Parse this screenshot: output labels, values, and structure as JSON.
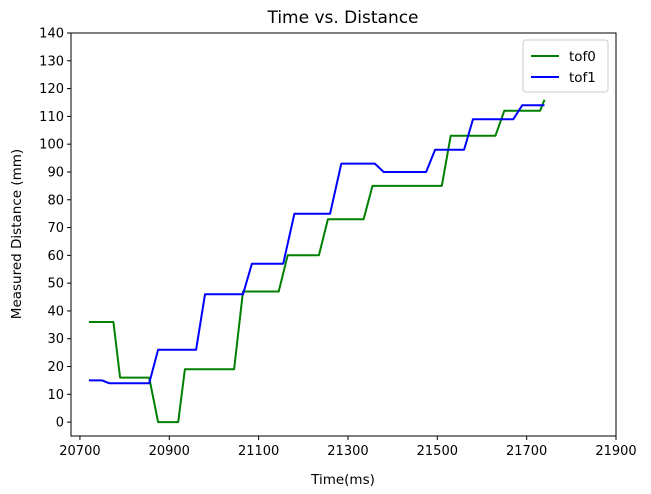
{
  "chart_data": {
    "type": "line",
    "title": "Time vs. Distance",
    "xlabel": "Time(ms)",
    "ylabel": "Measured Distance (mm)",
    "xlim": [
      20680,
      21900
    ],
    "ylim": [
      -5,
      140
    ],
    "xticks": [
      20700,
      20900,
      21100,
      21300,
      21500,
      21700,
      21900
    ],
    "yticks": [
      0,
      10,
      20,
      30,
      40,
      50,
      60,
      70,
      80,
      90,
      100,
      110,
      120,
      130,
      140
    ],
    "grid": false,
    "legend_position": "top-right",
    "series": [
      {
        "name": "tof0",
        "color": "#008000",
        "x": [
          20720,
          20775,
          20790,
          20855,
          20875,
          20920,
          20935,
          20960,
          20990,
          21045,
          21065,
          21105,
          21145,
          21165,
          21235,
          21255,
          21335,
          21355,
          21510,
          21530,
          21630,
          21650,
          21730,
          21740
        ],
        "y": [
          36,
          36,
          16,
          16,
          0,
          0,
          19,
          19,
          19,
          19,
          47,
          47,
          47,
          60,
          60,
          73,
          73,
          85,
          85,
          103,
          103,
          112,
          112,
          116
        ]
      },
      {
        "name": "tof1",
        "color": "#0000ff",
        "x": [
          20720,
          20750,
          20765,
          20855,
          20875,
          20960,
          20980,
          21065,
          21085,
          21155,
          21180,
          21260,
          21285,
          21360,
          21380,
          21475,
          21495,
          21560,
          21580,
          21670,
          21690,
          21740
        ],
        "y": [
          15,
          15,
          14,
          14,
          26,
          26,
          46,
          46,
          57,
          57,
          75,
          75,
          93,
          93,
          90,
          90,
          98,
          98,
          109,
          109,
          114,
          114
        ]
      }
    ]
  }
}
